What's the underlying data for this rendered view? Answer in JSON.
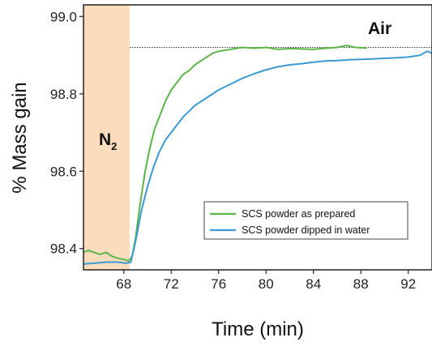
{
  "chart_data": {
    "type": "line",
    "xlabel": "Time (min)",
    "ylabel": "% Mass gain",
    "xlim": [
      64.6,
      94.0
    ],
    "ylim": [
      98.345,
      99.03
    ],
    "xticks": [
      68,
      72,
      76,
      80,
      84,
      88,
      92
    ],
    "yticks": [
      98.4,
      98.6,
      98.8,
      99.0
    ],
    "xtick_labels": [
      "68",
      "72",
      "76",
      "80",
      "84",
      "88",
      "92"
    ],
    "ytick_labels": [
      "98.4",
      "98.6",
      "98.8",
      "99.0"
    ],
    "grid": false,
    "legend_position": "lower-right",
    "shaded_region": {
      "x_range": [
        64.6,
        68.5
      ],
      "label_main": "N",
      "label_sub": "2",
      "color": "#fbdcbc"
    },
    "annotations": [
      {
        "text": "Air"
      }
    ],
    "reference_line": {
      "y": 98.92,
      "style": "dotted",
      "color": "#333333"
    },
    "series": [
      {
        "name": "SCS powder as prepared",
        "color": "#5cb548",
        "points": [
          [
            64.6,
            98.39
          ],
          [
            65.0,
            98.395
          ],
          [
            65.5,
            98.39
          ],
          [
            66.0,
            98.385
          ],
          [
            66.5,
            98.39
          ],
          [
            67.0,
            98.38
          ],
          [
            67.5,
            98.375
          ],
          [
            68.0,
            98.372
          ],
          [
            68.4,
            98.368
          ],
          [
            68.7,
            98.38
          ],
          [
            69.0,
            98.43
          ],
          [
            69.4,
            98.52
          ],
          [
            69.8,
            98.6
          ],
          [
            70.2,
            98.66
          ],
          [
            70.6,
            98.71
          ],
          [
            71.0,
            98.74
          ],
          [
            71.5,
            98.78
          ],
          [
            72.0,
            98.81
          ],
          [
            72.5,
            98.83
          ],
          [
            73.0,
            98.85
          ],
          [
            73.5,
            98.86
          ],
          [
            74.0,
            98.875
          ],
          [
            74.5,
            98.885
          ],
          [
            75.0,
            98.895
          ],
          [
            75.5,
            98.905
          ],
          [
            76.0,
            98.91
          ],
          [
            77.0,
            98.915
          ],
          [
            78.0,
            98.92
          ],
          [
            79.0,
            98.918
          ],
          [
            80.0,
            98.92
          ],
          [
            81.0,
            98.915
          ],
          [
            82.0,
            98.917
          ],
          [
            83.0,
            98.916
          ],
          [
            84.0,
            98.915
          ],
          [
            85.0,
            98.918
          ],
          [
            86.0,
            98.92
          ],
          [
            86.8,
            98.925
          ],
          [
            87.5,
            98.92
          ],
          [
            88.5,
            98.918
          ]
        ]
      },
      {
        "name": "SCS powder dipped in water",
        "color": "#3b9ad3",
        "points": [
          [
            64.6,
            98.36
          ],
          [
            65.5,
            98.362
          ],
          [
            66.5,
            98.365
          ],
          [
            67.5,
            98.365
          ],
          [
            68.2,
            98.362
          ],
          [
            68.6,
            98.365
          ],
          [
            69.0,
            98.42
          ],
          [
            69.5,
            98.5
          ],
          [
            70.0,
            98.56
          ],
          [
            70.5,
            98.61
          ],
          [
            71.0,
            98.65
          ],
          [
            71.5,
            98.68
          ],
          [
            72.0,
            98.7
          ],
          [
            72.5,
            98.72
          ],
          [
            73.0,
            98.74
          ],
          [
            73.5,
            98.755
          ],
          [
            74.0,
            98.77
          ],
          [
            75.0,
            98.79
          ],
          [
            76.0,
            98.81
          ],
          [
            77.0,
            98.825
          ],
          [
            78.0,
            98.84
          ],
          [
            79.0,
            98.852
          ],
          [
            80.0,
            98.862
          ],
          [
            81.0,
            98.87
          ],
          [
            82.0,
            98.875
          ],
          [
            83.0,
            98.878
          ],
          [
            84.0,
            98.882
          ],
          [
            85.0,
            98.885
          ],
          [
            86.0,
            98.886
          ],
          [
            87.0,
            98.888
          ],
          [
            88.0,
            98.889
          ],
          [
            89.0,
            98.89
          ],
          [
            90.0,
            98.892
          ],
          [
            91.0,
            98.893
          ],
          [
            92.0,
            98.895
          ],
          [
            93.0,
            98.9
          ],
          [
            93.6,
            98.91
          ],
          [
            94.0,
            98.905
          ]
        ]
      }
    ]
  }
}
